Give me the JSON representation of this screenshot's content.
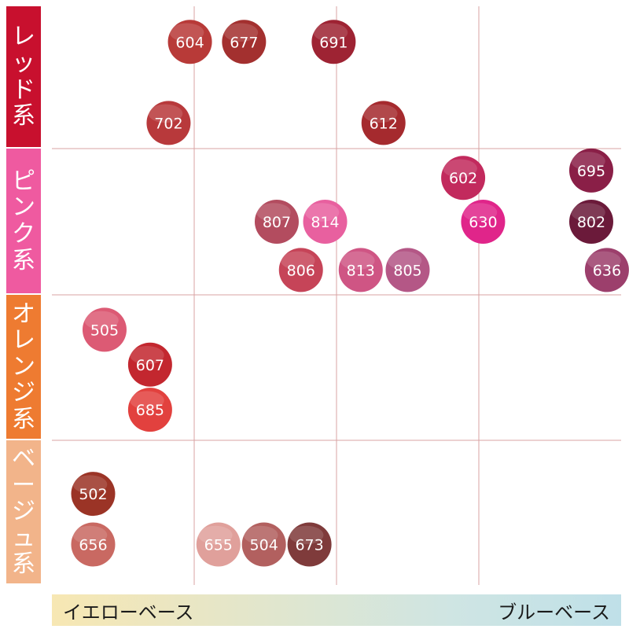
{
  "chart_data": {
    "type": "scatter",
    "x_axis": {
      "left_label": "イエローベース",
      "right_label": "ブルーベース",
      "gradient": [
        "#f7e7b3",
        "#cfe5e3",
        "#bfe0e8"
      ]
    },
    "categories": [
      {
        "label": "レッド系",
        "color": "#c8102e"
      },
      {
        "label": "ピンク系",
        "color": "#ef5aa0"
      },
      {
        "label": "オレンジ系",
        "color": "#ee7b31"
      },
      {
        "label": "ベージュ系",
        "color": "#f2b48a"
      }
    ],
    "grid_color": "#d9a3a3",
    "points": [
      {
        "label": "604",
        "color": "#b83a38",
        "column": 0.97,
        "category": 0,
        "row": 0.25
      },
      {
        "label": "677",
        "color": "#a3302f",
        "column": 1.35,
        "category": 0,
        "row": 0.25
      },
      {
        "label": "691",
        "color": "#9e2333",
        "column": 1.98,
        "category": 0,
        "row": 0.25
      },
      {
        "label": "702",
        "color": "#b8393b",
        "column": 0.82,
        "category": 0,
        "row": 0.82
      },
      {
        "label": "612",
        "color": "#a52a2e",
        "column": 2.33,
        "category": 0,
        "row": 0.82
      },
      {
        "label": "602",
        "color": "#c22a5d",
        "column": 2.89,
        "category": 1,
        "row": 0.2
      },
      {
        "label": "695",
        "color": "#8a1f47",
        "column": 3.79,
        "category": 1,
        "row": 0.15
      },
      {
        "label": "807",
        "color": "#b34c5f",
        "column": 1.58,
        "category": 1,
        "row": 0.5
      },
      {
        "label": "814",
        "color": "#e8609f",
        "column": 1.92,
        "category": 1,
        "row": 0.5
      },
      {
        "label": "630",
        "color": "#e0258a",
        "column": 3.03,
        "category": 1,
        "row": 0.5
      },
      {
        "label": "802",
        "color": "#6b1a3a",
        "column": 3.79,
        "category": 1,
        "row": 0.5
      },
      {
        "label": "806",
        "color": "#c64458",
        "column": 1.75,
        "category": 1,
        "row": 0.83
      },
      {
        "label": "813",
        "color": "#cf5584",
        "column": 2.17,
        "category": 1,
        "row": 0.83
      },
      {
        "label": "805",
        "color": "#b45786",
        "column": 2.5,
        "category": 1,
        "row": 0.83
      },
      {
        "label": "636",
        "color": "#9c3f6c",
        "column": 3.9,
        "category": 1,
        "row": 0.83
      },
      {
        "label": "505",
        "color": "#dc5a74",
        "column": 0.37,
        "category": 2,
        "row": 0.24
      },
      {
        "label": "607",
        "color": "#c3272f",
        "column": 0.69,
        "category": 2,
        "row": 0.48
      },
      {
        "label": "685",
        "color": "#e2413e",
        "column": 0.69,
        "category": 2,
        "row": 0.79
      },
      {
        "label": "502",
        "color": "#9b3426",
        "column": 0.29,
        "category": 3,
        "row": 0.37
      },
      {
        "label": "656",
        "color": "#c96962",
        "column": 0.29,
        "category": 3,
        "row": 0.72
      },
      {
        "label": "655",
        "color": "#e0a09b",
        "column": 1.17,
        "category": 3,
        "row": 0.72
      },
      {
        "label": "504",
        "color": "#b2605f",
        "column": 1.49,
        "category": 3,
        "row": 0.72
      },
      {
        "label": "673",
        "color": "#7f3b3b",
        "column": 1.81,
        "category": 3,
        "row": 0.72
      }
    ]
  }
}
